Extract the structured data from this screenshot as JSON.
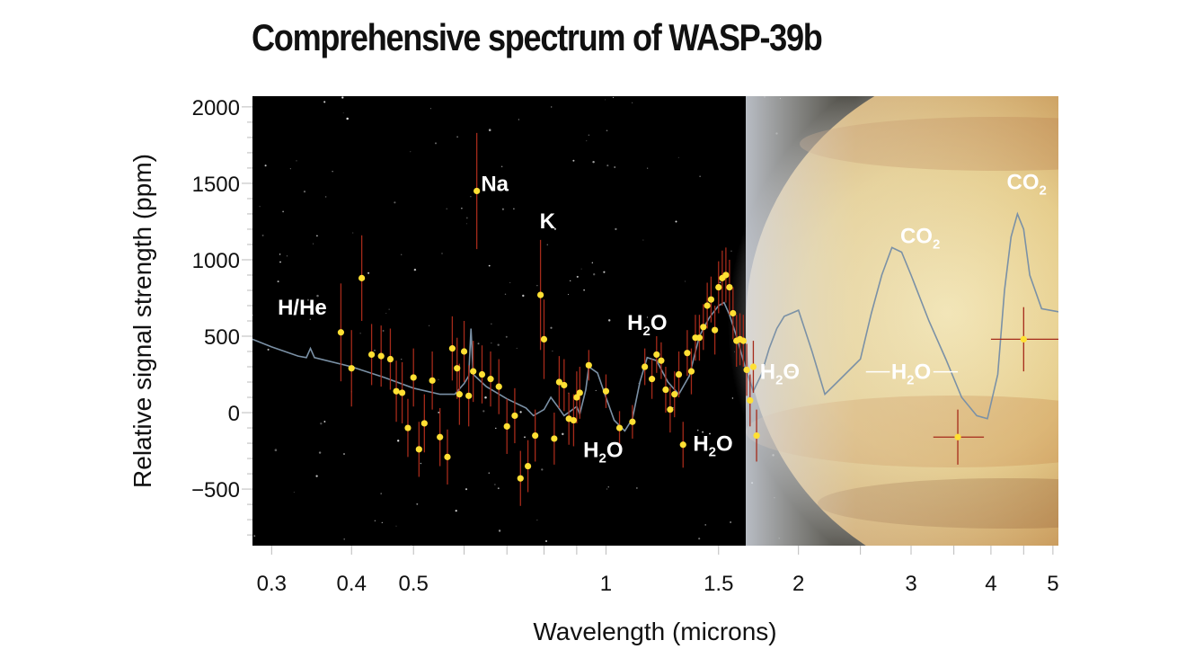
{
  "chart_data": {
    "type": "scatter",
    "title": "Comprehensive spectrum of WASP-39b",
    "xlabel": "Wavelength (microns)",
    "ylabel": "Relative signal strength (ppm)",
    "x_scale": "log",
    "xlim": [
      0.28,
      5.1
    ],
    "ylim": [
      -870,
      2070
    ],
    "xticks": [
      {
        "value": 0.3,
        "label": "0.3"
      },
      {
        "value": 0.4,
        "label": "0.4"
      },
      {
        "value": 0.5,
        "label": "0.5"
      },
      {
        "value": 1,
        "label": "1"
      },
      {
        "value": 1.5,
        "label": "1.5"
      },
      {
        "value": 2,
        "label": "2"
      },
      {
        "value": 3,
        "label": "3"
      },
      {
        "value": 4,
        "label": "4"
      },
      {
        "value": 5,
        "label": "5"
      }
    ],
    "yticks": [
      {
        "value": 2000,
        "label": "2000"
      },
      {
        "value": 1500,
        "label": "1500"
      },
      {
        "value": 1000,
        "label": "1000"
      },
      {
        "value": 500,
        "label": "500"
      },
      {
        "value": 0,
        "label": "0"
      },
      {
        "value": -500,
        "label": "−500"
      }
    ],
    "colors": {
      "plot_background": "#000000",
      "points": "#ffe033",
      "error_bars": "#a52a1a",
      "model_line": "#7b91a6",
      "planet": "#e6cd8c"
    },
    "series": [
      {
        "points": [
          {
            "x": 0.385,
            "y": 525,
            "e": 320
          },
          {
            "x": 0.4,
            "y": 290,
            "e": 250
          },
          {
            "x": 0.415,
            "y": 880,
            "e": 280
          },
          {
            "x": 0.43,
            "y": 380,
            "e": 200
          },
          {
            "x": 0.445,
            "y": 370,
            "e": 200
          },
          {
            "x": 0.46,
            "y": 350,
            "e": 200
          },
          {
            "x": 0.47,
            "y": 140,
            "e": 200
          },
          {
            "x": 0.48,
            "y": 130,
            "e": 200
          },
          {
            "x": 0.49,
            "y": -100,
            "e": 190
          },
          {
            "x": 0.5,
            "y": 230,
            "e": 190
          },
          {
            "x": 0.51,
            "y": -240,
            "e": 180
          },
          {
            "x": 0.52,
            "y": -70,
            "e": 190
          },
          {
            "x": 0.535,
            "y": 210,
            "e": 190
          },
          {
            "x": 0.55,
            "y": -160,
            "e": 190
          },
          {
            "x": 0.565,
            "y": -290,
            "e": 180
          },
          {
            "x": 0.575,
            "y": 420,
            "e": 210
          },
          {
            "x": 0.585,
            "y": 290,
            "e": 200
          },
          {
            "x": 0.59,
            "y": 120,
            "e": 200
          },
          {
            "x": 0.6,
            "y": 400,
            "e": 200
          },
          {
            "x": 0.61,
            "y": 110,
            "e": 200
          },
          {
            "x": 0.62,
            "y": 270,
            "e": 200
          },
          {
            "x": 0.628,
            "y": 1450,
            "e": 380
          },
          {
            "x": 0.64,
            "y": 250,
            "e": 190
          },
          {
            "x": 0.66,
            "y": 220,
            "e": 180
          },
          {
            "x": 0.68,
            "y": 170,
            "e": 180
          },
          {
            "x": 0.7,
            "y": -90,
            "e": 180
          },
          {
            "x": 0.72,
            "y": -20,
            "e": 180
          },
          {
            "x": 0.735,
            "y": -430,
            "e": 180
          },
          {
            "x": 0.755,
            "y": -350,
            "e": 170
          },
          {
            "x": 0.775,
            "y": -150,
            "e": 170
          },
          {
            "x": 0.79,
            "y": 770,
            "e": 360
          },
          {
            "x": 0.8,
            "y": 480,
            "e": 260
          },
          {
            "x": 0.83,
            "y": -170,
            "e": 170
          },
          {
            "x": 0.845,
            "y": 200,
            "e": 170
          },
          {
            "x": 0.86,
            "y": 180,
            "e": 170
          },
          {
            "x": 0.875,
            "y": -40,
            "e": 170
          },
          {
            "x": 0.89,
            "y": -50,
            "e": 170
          },
          {
            "x": 0.9,
            "y": 100,
            "e": 170
          },
          {
            "x": 0.91,
            "y": 130,
            "e": 170
          },
          {
            "x": 0.94,
            "y": 310,
            "e": 100
          },
          {
            "x": 1.0,
            "y": 140,
            "e": 110
          },
          {
            "x": 1.05,
            "y": -100,
            "e": 110
          },
          {
            "x": 1.1,
            "y": -60,
            "e": 110
          },
          {
            "x": 1.15,
            "y": 300,
            "e": 120
          },
          {
            "x": 1.18,
            "y": 220,
            "e": 130
          },
          {
            "x": 1.2,
            "y": 380,
            "e": 120
          },
          {
            "x": 1.22,
            "y": 340,
            "e": 120
          },
          {
            "x": 1.24,
            "y": 150,
            "e": 150
          },
          {
            "x": 1.26,
            "y": 20,
            "e": 150
          },
          {
            "x": 1.28,
            "y": 120,
            "e": 150
          },
          {
            "x": 1.3,
            "y": 250,
            "e": 150
          },
          {
            "x": 1.32,
            "y": -210,
            "e": 150
          },
          {
            "x": 1.34,
            "y": 390,
            "e": 150
          },
          {
            "x": 1.36,
            "y": 270,
            "e": 150
          },
          {
            "x": 1.38,
            "y": 490,
            "e": 150
          },
          {
            "x": 1.4,
            "y": 490,
            "e": 150
          },
          {
            "x": 1.42,
            "y": 560,
            "e": 150
          },
          {
            "x": 1.44,
            "y": 700,
            "e": 150
          },
          {
            "x": 1.46,
            "y": 740,
            "e": 150
          },
          {
            "x": 1.48,
            "y": 540,
            "e": 160
          },
          {
            "x": 1.5,
            "y": 820,
            "e": 170
          },
          {
            "x": 1.52,
            "y": 880,
            "e": 180
          },
          {
            "x": 1.54,
            "y": 900,
            "e": 180
          },
          {
            "x": 1.56,
            "y": 820,
            "e": 180
          },
          {
            "x": 1.58,
            "y": 650,
            "e": 170
          },
          {
            "x": 1.6,
            "y": 470,
            "e": 170
          },
          {
            "x": 1.62,
            "y": 480,
            "e": 170
          },
          {
            "x": 1.64,
            "y": 470,
            "e": 170
          },
          {
            "x": 1.66,
            "y": 280,
            "e": 170
          },
          {
            "x": 1.68,
            "y": 80,
            "e": 170
          },
          {
            "x": 1.7,
            "y": 300,
            "e": 170
          },
          {
            "x": 1.72,
            "y": -150,
            "e": 170
          },
          {
            "x": 3.55,
            "y": -160,
            "e": 180,
            "xe": [
              3.25,
              3.9
            ]
          },
          {
            "x": 4.5,
            "y": 480,
            "e": 210,
            "xe": [
              4.0,
              5.1
            ]
          }
        ]
      }
    ],
    "model_curve": [
      [
        0.28,
        480
      ],
      [
        0.3,
        430
      ],
      [
        0.33,
        370
      ],
      [
        0.34,
        360
      ],
      [
        0.345,
        420
      ],
      [
        0.35,
        360
      ],
      [
        0.4,
        300
      ],
      [
        0.45,
        230
      ],
      [
        0.5,
        160
      ],
      [
        0.55,
        120
      ],
      [
        0.58,
        120
      ],
      [
        0.6,
        190
      ],
      [
        0.61,
        240
      ],
      [
        0.615,
        550
      ],
      [
        0.62,
        250
      ],
      [
        0.65,
        170
      ],
      [
        0.7,
        90
      ],
      [
        0.75,
        30
      ],
      [
        0.77,
        -20
      ],
      [
        0.8,
        20
      ],
      [
        0.82,
        100
      ],
      [
        0.84,
        40
      ],
      [
        0.86,
        -20
      ],
      [
        0.88,
        10
      ],
      [
        0.9,
        40
      ],
      [
        0.91,
        -10
      ],
      [
        0.93,
        150
      ],
      [
        0.94,
        300
      ],
      [
        0.97,
        260
      ],
      [
        1.0,
        100
      ],
      [
        1.03,
        -50
      ],
      [
        1.07,
        -120
      ],
      [
        1.1,
        -40
      ],
      [
        1.13,
        200
      ],
      [
        1.16,
        360
      ],
      [
        1.2,
        340
      ],
      [
        1.25,
        200
      ],
      [
        1.3,
        120
      ],
      [
        1.35,
        240
      ],
      [
        1.4,
        500
      ],
      [
        1.45,
        620
      ],
      [
        1.5,
        700
      ],
      [
        1.53,
        720
      ],
      [
        1.56,
        640
      ],
      [
        1.6,
        500
      ],
      [
        1.65,
        300
      ],
      [
        1.7,
        140
      ],
      [
        1.75,
        250
      ],
      [
        1.8,
        420
      ],
      [
        1.85,
        550
      ],
      [
        1.9,
        630
      ],
      [
        1.95,
        650
      ],
      [
        2.0,
        670
      ],
      [
        2.1,
        400
      ],
      [
        2.2,
        120
      ],
      [
        2.3,
        200
      ],
      [
        2.5,
        350
      ],
      [
        2.6,
        650
      ],
      [
        2.7,
        900
      ],
      [
        2.8,
        1080
      ],
      [
        2.9,
        1050
      ],
      [
        3.0,
        900
      ],
      [
        3.2,
        600
      ],
      [
        3.4,
        350
      ],
      [
        3.6,
        100
      ],
      [
        3.8,
        -20
      ],
      [
        3.95,
        -40
      ],
      [
        4.1,
        250
      ],
      [
        4.2,
        800
      ],
      [
        4.3,
        1150
      ],
      [
        4.4,
        1300
      ],
      [
        4.5,
        1200
      ],
      [
        4.6,
        900
      ],
      [
        4.8,
        680
      ],
      [
        5.1,
        660
      ]
    ],
    "annotations": [
      {
        "text": "H/He",
        "x": 0.335,
        "y": 640
      },
      {
        "text": "Na",
        "x": 0.67,
        "y": 1450
      },
      {
        "text": "K",
        "x": 0.81,
        "y": 1205
      },
      {
        "text": "H",
        "sub": "2",
        "tail": "O",
        "x": 1.16,
        "y": 540
      },
      {
        "text": "H",
        "sub": "2",
        "tail": "O",
        "x": 0.99,
        "y": -290
      },
      {
        "text": "H",
        "sub": "2",
        "tail": "O",
        "x": 1.47,
        "y": -250
      },
      {
        "text": "H",
        "sub": "2",
        "tail": "O",
        "x": 1.87,
        "y": 220
      },
      {
        "text": "H",
        "sub": "2",
        "tail": "O",
        "x": 3.0,
        "y": 220
      },
      {
        "text": "CO",
        "sub": "2",
        "x": 3.1,
        "y": 1110
      },
      {
        "text": "CO",
        "sub": "2",
        "x": 4.55,
        "y": 1460
      }
    ]
  }
}
